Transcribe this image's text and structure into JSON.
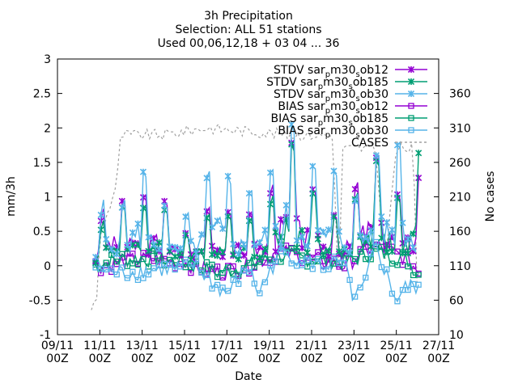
{
  "chart_data": {
    "type": "line",
    "title_lines": [
      "3h Precipitation",
      "Selection: ALL      51 stations",
      "Used 00,06,12,18 + 03 04 ... 36"
    ],
    "xlabel": "Date",
    "ylabel": "mm/3h",
    "y2label": "No cases",
    "x_range_days": [
      9,
      27
    ],
    "ylim": [
      -1,
      3
    ],
    "y2lim": [
      10,
      410
    ],
    "x_ticks": [
      {
        "day": 9,
        "line1": "09/11",
        "line2": "00Z"
      },
      {
        "day": 11,
        "line1": "11/11",
        "line2": "00Z"
      },
      {
        "day": 13,
        "line1": "13/11",
        "line2": "00Z"
      },
      {
        "day": 15,
        "line1": "15/11",
        "line2": "00Z"
      },
      {
        "day": 17,
        "line1": "17/11",
        "line2": "00Z"
      },
      {
        "day": 19,
        "line1": "19/11",
        "line2": "00Z"
      },
      {
        "day": 21,
        "line1": "21/11",
        "line2": "00Z"
      },
      {
        "day": 23,
        "line1": "23/11",
        "line2": "00Z"
      },
      {
        "day": 25,
        "line1": "25/11",
        "line2": "00Z"
      },
      {
        "day": 27,
        "line1": "27/11",
        "line2": "00Z"
      }
    ],
    "y_ticks": [
      "-1",
      "-0.5",
      "0",
      "0.5",
      "1",
      "1.5",
      "2",
      "2.5",
      "3"
    ],
    "y2_ticks": [
      "10",
      "60",
      "110",
      "160",
      "210",
      "260",
      "310",
      "360"
    ],
    "legend_position": "top-right",
    "series": [
      {
        "name": "STDV sar_p m30_s ob12",
        "base": "STDV sar",
        "s1": "p",
        "mid": "m30",
        "s2": "s",
        "tail": "ob12",
        "color": "#9400d3",
        "marker": "x-star",
        "dash": false,
        "axis": "y",
        "anchors": [
          [
            10.8,
            0.3
          ],
          [
            11.3,
            1.0
          ],
          [
            12.5,
            0.9
          ],
          [
            13.7,
            1.1
          ],
          [
            15.2,
            0.4
          ],
          [
            16.3,
            0.9
          ],
          [
            17.5,
            0.7
          ],
          [
            18.8,
            0.8
          ],
          [
            19.9,
            1.9
          ],
          [
            20.8,
            1.2
          ],
          [
            22.4,
            0.6
          ],
          [
            23.8,
            1.7
          ],
          [
            25.3,
            0.9
          ],
          [
            26.1,
            1.3
          ]
        ]
      },
      {
        "name": "STDV sar_p m30_s ob185",
        "base": "STDV sar",
        "s1": "p",
        "mid": "m30",
        "s2": "s",
        "tail": "ob185",
        "color": "#009e73",
        "marker": "x-star",
        "dash": false,
        "axis": "y",
        "anchors": [
          [
            10.8,
            0.25
          ],
          [
            11.4,
            0.9
          ],
          [
            12.6,
            0.8
          ],
          [
            13.8,
            0.9
          ],
          [
            15.3,
            0.35
          ],
          [
            16.4,
            0.85
          ],
          [
            17.6,
            0.6
          ],
          [
            18.9,
            0.75
          ],
          [
            20.0,
            1.8
          ],
          [
            20.9,
            1.1
          ],
          [
            22.5,
            0.55
          ],
          [
            23.9,
            1.6
          ],
          [
            25.4,
            0.8
          ],
          [
            26.1,
            1.7
          ]
        ]
      },
      {
        "name": "STDV sar_p m30_s ob30",
        "base": "STDV sar",
        "s1": "p",
        "mid": "m30",
        "s2": "s",
        "tail": "ob30",
        "color": "#56b4e9",
        "marker": "x-star",
        "dash": false,
        "axis": "y",
        "anchors": [
          [
            10.8,
            0.3
          ],
          [
            11.2,
            1.0
          ],
          [
            12.0,
            0.8
          ],
          [
            12.8,
            1.5
          ],
          [
            13.7,
            1.0
          ],
          [
            14.8,
            0.6
          ],
          [
            15.7,
            1.0
          ],
          [
            16.6,
            1.7
          ],
          [
            17.5,
            0.9
          ],
          [
            18.6,
            1.2
          ],
          [
            19.5,
            1.5
          ],
          [
            19.9,
            2.2
          ],
          [
            20.5,
            1.6
          ],
          [
            21.2,
            1.4
          ],
          [
            22.0,
            1.4
          ],
          [
            23.0,
            0.9
          ],
          [
            23.9,
            1.6
          ],
          [
            24.6,
            1.6
          ],
          [
            25.2,
            1.8
          ],
          [
            26.0,
            1.0
          ]
        ]
      },
      {
        "name": "BIAS sar_p m30_s ob12",
        "base": "BIAS sar",
        "s1": "p",
        "mid": "m30",
        "s2": "s",
        "tail": "ob12",
        "color": "#9400d3",
        "marker": "square",
        "dash": false,
        "axis": "y",
        "anchors": [
          [
            10.8,
            0.0
          ],
          [
            12.0,
            0.05
          ],
          [
            13.5,
            0.1
          ],
          [
            15.0,
            0.05
          ],
          [
            16.5,
            -0.1
          ],
          [
            18.0,
            0.0
          ],
          [
            19.5,
            0.2
          ],
          [
            21.0,
            0.1
          ],
          [
            22.5,
            0.0
          ],
          [
            24.0,
            0.3
          ],
          [
            25.5,
            0.1
          ],
          [
            26.1,
            -0.1
          ]
        ]
      },
      {
        "name": "BIAS sar_p m30_s ob185",
        "base": "BIAS sar",
        "s1": "p",
        "mid": "m30",
        "s2": "s",
        "tail": "ob185",
        "color": "#009e73",
        "marker": "square",
        "dash": false,
        "axis": "y",
        "anchors": [
          [
            10.8,
            0.0
          ],
          [
            12.0,
            0.1
          ],
          [
            13.5,
            0.1
          ],
          [
            15.0,
            0.05
          ],
          [
            16.5,
            -0.1
          ],
          [
            18.0,
            0.0
          ],
          [
            19.5,
            0.15
          ],
          [
            21.0,
            0.1
          ],
          [
            22.5,
            0.05
          ],
          [
            24.0,
            0.2
          ],
          [
            25.5,
            0.1
          ],
          [
            26.1,
            -0.15
          ]
        ]
      },
      {
        "name": "BIAS sar_p m30_s ob30",
        "base": "BIAS sar",
        "s1": "p",
        "mid": "m30",
        "s2": "s",
        "tail": "ob30",
        "color": "#56b4e9",
        "marker": "square",
        "dash": false,
        "axis": "y",
        "anchors": [
          [
            10.8,
            0.0
          ],
          [
            11.5,
            -0.1
          ],
          [
            12.5,
            -0.1
          ],
          [
            13.5,
            -0.05
          ],
          [
            14.5,
            -0.05
          ],
          [
            15.5,
            0.0
          ],
          [
            16.5,
            -0.3
          ],
          [
            17.0,
            -0.4
          ],
          [
            18.0,
            0.0
          ],
          [
            18.5,
            -0.4
          ],
          [
            19.5,
            0.2
          ],
          [
            20.5,
            0.1
          ],
          [
            21.5,
            0.0
          ],
          [
            22.5,
            0.05
          ],
          [
            23.0,
            -0.5
          ],
          [
            23.5,
            -0.3
          ],
          [
            24.0,
            0.3
          ],
          [
            25.0,
            -0.5
          ],
          [
            25.5,
            -0.3
          ],
          [
            26.1,
            -0.3
          ]
        ]
      },
      {
        "name": "CASES",
        "color": "#a0a0a0",
        "marker": "none",
        "dash": true,
        "axis": "y2",
        "anchors": [
          [
            10.6,
            50
          ],
          [
            10.9,
            60
          ],
          [
            11.0,
            160
          ],
          [
            11.3,
            180
          ],
          [
            11.8,
            230
          ],
          [
            12.0,
            300
          ],
          [
            14.0,
            300
          ],
          [
            16.0,
            310
          ],
          [
            18.0,
            305
          ],
          [
            20.0,
            300
          ],
          [
            22.0,
            300
          ],
          [
            22.3,
            40
          ],
          [
            22.4,
            280
          ],
          [
            24.0,
            280
          ],
          [
            24.5,
            120
          ],
          [
            25.0,
            280
          ],
          [
            25.8,
            280
          ],
          [
            26.0,
            50
          ]
        ]
      }
    ]
  }
}
